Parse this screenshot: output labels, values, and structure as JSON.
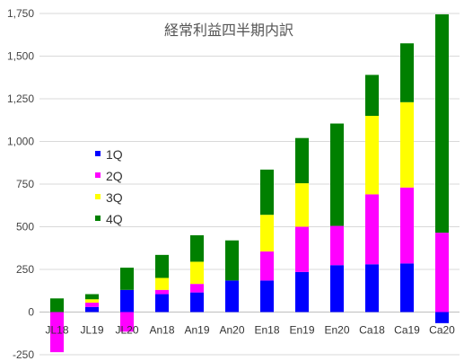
{
  "chart_data": {
    "type": "bar",
    "stacked": true,
    "title": "経常利益四半期内訳",
    "xlabel": "",
    "ylabel": "",
    "ylim": [
      -250,
      1750
    ],
    "yticks": [
      -250,
      0,
      250,
      500,
      750,
      1000,
      1250,
      1500,
      1750
    ],
    "ytick_labels": [
      "-250",
      "0",
      "250",
      "500",
      "750",
      "1,000",
      "1,250",
      "1,500",
      "1,750"
    ],
    "grid": true,
    "legend_position": "left-center",
    "categories": [
      "JL18",
      "JL19",
      "JL20",
      "An18",
      "An19",
      "An20",
      "En18",
      "En19",
      "En20",
      "Ca18",
      "Ca19",
      "Ca20"
    ],
    "series": [
      {
        "name": "1Q",
        "color": "#0000ff",
        "values": [
          0,
          30,
          130,
          105,
          115,
          185,
          185,
          235,
          275,
          280,
          285,
          -65
        ]
      },
      {
        "name": "2Q",
        "color": "#ff00ff",
        "values": [
          -235,
          25,
          -115,
          25,
          50,
          0,
          170,
          265,
          230,
          410,
          445,
          465
        ]
      },
      {
        "name": "3Q",
        "color": "#ffff00",
        "values": [
          0,
          20,
          0,
          70,
          130,
          0,
          215,
          255,
          0,
          460,
          500,
          0
        ]
      },
      {
        "name": "4Q",
        "color": "#008000",
        "values": [
          80,
          30,
          130,
          135,
          155,
          235,
          265,
          265,
          600,
          240,
          345,
          1280
        ]
      }
    ]
  }
}
